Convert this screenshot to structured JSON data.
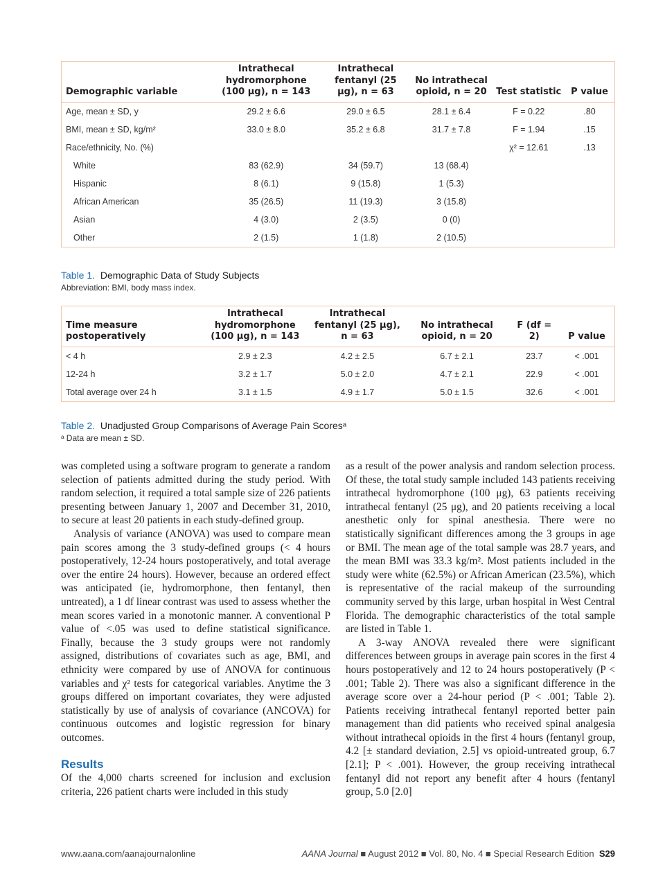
{
  "table1": {
    "headers": [
      "Demographic variable",
      "Intrathecal hydromorphone (100 μg), n = 143",
      "Intrathecal fentanyl (25 μg), n = 63",
      "No intrathecal opioid, n = 20",
      "Test statistic",
      "P value"
    ],
    "rows": [
      {
        "label": "Age, mean ± SD, y",
        "indent": false,
        "cells": [
          "29.2 ± 6.6",
          "29.0 ± 6.5",
          "28.1 ± 6.4",
          "F = 0.22",
          ".80"
        ]
      },
      {
        "label": "BMI, mean ± SD, kg/m²",
        "indent": false,
        "cells": [
          "33.0 ± 8.0",
          "35.2 ± 6.8",
          "31.7 ± 7.8",
          "F = 1.94",
          ".15"
        ]
      },
      {
        "label": "Race/ethnicity, No. (%)",
        "indent": false,
        "cells": [
          "",
          "",
          "",
          "χ² = 12.61",
          ".13"
        ]
      },
      {
        "label": "White",
        "indent": true,
        "cells": [
          "83 (62.9)",
          "34 (59.7)",
          "13 (68.4)",
          "",
          ""
        ]
      },
      {
        "label": "Hispanic",
        "indent": true,
        "cells": [
          "8 (6.1)",
          "9 (15.8)",
          "1 (5.3)",
          "",
          ""
        ]
      },
      {
        "label": "African American",
        "indent": true,
        "cells": [
          "35 (26.5)",
          "11 (19.3)",
          "3 (15.8)",
          "",
          ""
        ]
      },
      {
        "label": "Asian",
        "indent": true,
        "cells": [
          "4 (3.0)",
          "2 (3.5)",
          "0 (0)",
          "",
          ""
        ]
      },
      {
        "label": "Other",
        "indent": true,
        "cells": [
          "2 (1.5)",
          "1 (1.8)",
          "2 (10.5)",
          "",
          ""
        ]
      }
    ],
    "caption_label": "Table 1.",
    "caption": "Demographic Data of Study Subjects",
    "note": "Abbreviation: BMI, body mass index."
  },
  "table2": {
    "headers": [
      "Time measure postoperatively",
      "Intrathecal hydromorphone (100 μg), n = 143",
      "Intrathecal fentanyl (25 μg), n = 63",
      "No intrathecal opioid, n = 20",
      "F (df = 2)",
      "P value"
    ],
    "rows": [
      {
        "label": "< 4 h",
        "cells": [
          "2.9 ± 2.3",
          "4.2 ± 2.5",
          "6.7 ± 2.1",
          "23.7",
          "< .001"
        ]
      },
      {
        "label": "12-24 h",
        "cells": [
          "3.2 ± 1.7",
          "5.0 ± 2.0",
          "4.7 ± 2.1",
          "22.9",
          "< .001"
        ]
      },
      {
        "label": "Total average over 24 h",
        "cells": [
          "3.1 ± 1.5",
          "4.9 ± 1.7",
          "5.0 ± 1.5",
          "32.6",
          "< .001"
        ]
      }
    ],
    "caption_label": "Table 2.",
    "caption": "Unadjusted Group Comparisons of Average Pain Scoresᵃ",
    "note": "ᵃ Data are mean ± SD."
  },
  "left_column": {
    "p1": "was completed using a software program to generate a random selection of patients admitted during the study period. With random selection, it required a total sample size of 226 patients presenting between January 1, 2007 and December 31, 2010, to secure at least 20 patients in each study-defined group.",
    "p2": "Analysis of variance (ANOVA) was used to compare mean pain scores among the 3 study-defined groups (< 4 hours postoperatively, 12-24 hours postoperatively, and total average over the entire 24 hours). However, because an ordered effect was anticipated (ie, hydromorphone, then fentanyl, then untreated), a 1 df linear contrast was used to assess whether the mean scores varied in a monotonic manner. A conventional P value of <.05 was used to define statistical significance. Finally, because the 3 study groups were not randomly assigned, distributions of covariates such as age, BMI, and ethnicity were compared by use of ANOVA for continuous variables and χ² tests for categorical variables. Anytime the 3 groups differed on important covariates, they were adjusted statistically by use of analysis of covariance (ANCOVA) for continuous outcomes and logistic regression for binary outcomes.",
    "heading": "Results",
    "p3": "Of the 4,000 charts screened for inclusion and exclusion criteria, 226 patient charts were included in this study"
  },
  "right_column": {
    "p1": "as a result of the power analysis and random selection process. Of these, the total study sample included 143 patients receiving intrathecal hydromorphone (100 μg), 63 patients receiving intrathecal fentanyl (25 μg), and 20 patients receiving a local anesthetic only for spinal anesthesia. There were no statistically significant differences among the 3 groups in age or BMI. The mean age of the total sample was 28.7 years, and the mean BMI was 33.3 kg/m². Most patients included in the study were white (62.5%) or African American (23.5%), which is representative of the racial makeup of the surrounding community served by this large, urban hospital in West Central Florida. The demographic characteristics of the total sample are listed in Table 1.",
    "p2": "A 3-way ANOVA revealed there were significant differences between groups in average pain scores in the first 4 hours postoperatively and 12 to 24 hours postoperatively (P < .001; Table 2). There was also a significant difference in the average score over a 24-hour period (P < .001; Table 2). Patients receiving intrathecal fentanyl reported better pain management than did patients who received spinal analgesia without intrathecal opioids in the first 4 hours (fentanyl group, 4.2 [± standard deviation, 2.5] vs opioid-untreated group, 6.7 [2.1]; P < .001). However, the group receiving intrathecal fentanyl did not report any benefit after 4 hours (fentanyl group, 5.0 [2.0]"
  },
  "footer": {
    "url": "www.aana.com/aanajournalonline",
    "journal": "AANA Journal",
    "issue": "■ August 2012 ■ Vol. 80, No. 4 ■ Special Research Edition",
    "page": "S29"
  },
  "colors": {
    "accent": "#1f6db1",
    "table_border": "#f2c4a8"
  }
}
